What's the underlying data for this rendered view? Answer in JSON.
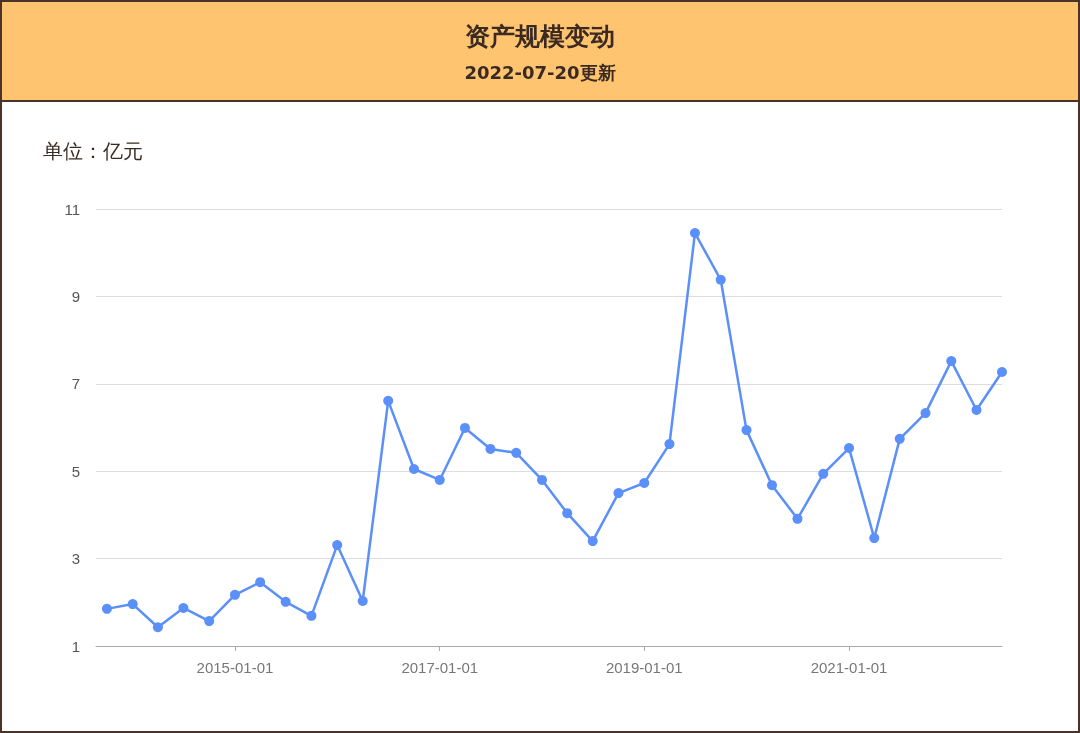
{
  "chart_data": {
    "type": "line",
    "title": "资产规模变动",
    "subtitle": "2022-07-20更新",
    "ylabel": "单位：亿元",
    "x": [
      "2013-10-01",
      "2014-01-01",
      "2014-04-01",
      "2014-07-01",
      "2014-10-01",
      "2015-01-01",
      "2015-04-01",
      "2015-07-01",
      "2015-10-01",
      "2016-01-01",
      "2016-04-01",
      "2016-07-01",
      "2016-10-01",
      "2017-01-01",
      "2017-04-01",
      "2017-07-01",
      "2017-10-01",
      "2018-01-01",
      "2018-04-01",
      "2018-07-01",
      "2018-10-01",
      "2019-01-01",
      "2019-04-01",
      "2019-07-01",
      "2019-10-01",
      "2020-01-01",
      "2020-04-01",
      "2020-07-01",
      "2020-10-01",
      "2021-01-01",
      "2021-04-01",
      "2021-07-01",
      "2021-10-01",
      "2022-01-01",
      "2022-04-01",
      "2022-07-01"
    ],
    "series": [
      {
        "color": "#5b8ff9",
        "values": [
          1.85,
          1.96,
          1.43,
          1.87,
          1.57,
          2.17,
          2.46,
          2.01,
          1.69,
          3.31,
          2.03,
          6.61,
          5.05,
          4.8,
          5.99,
          5.51,
          5.42,
          4.8,
          4.04,
          3.4,
          4.5,
          4.73,
          5.62,
          10.45,
          9.38,
          5.94,
          4.68,
          3.91,
          4.94,
          5.53,
          3.47,
          5.74,
          6.33,
          7.52,
          6.4,
          7.27
        ]
      }
    ],
    "xlim": [
      "2013-08-23",
      "2022-07-01"
    ],
    "xticks": [
      "2015-01-01",
      "2017-01-01",
      "2019-01-01",
      "2021-01-01"
    ],
    "ylim": [
      1,
      11
    ],
    "yticks": [
      1,
      3,
      5,
      7,
      9,
      11
    ],
    "grid": "y",
    "marker": "circle",
    "line_style": "solid"
  }
}
